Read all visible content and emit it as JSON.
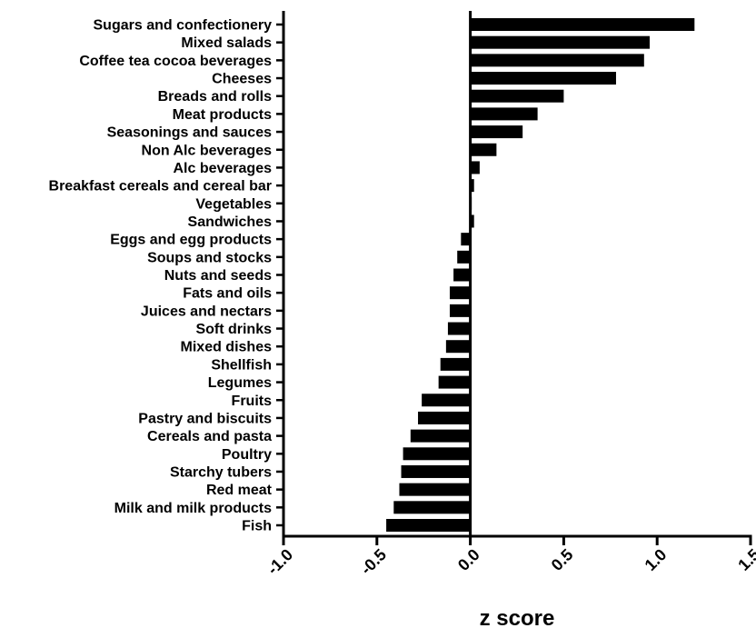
{
  "chart_data": {
    "type": "bar",
    "orientation": "horizontal",
    "categories": [
      "Sugars and confectionery",
      "Mixed salads",
      "Coffee tea cocoa beverages",
      "Cheeses",
      "Breads and rolls",
      "Meat products",
      "Seasonings and sauces",
      "Non Alc beverages",
      "Alc beverages",
      "Breakfast cereals and cereal bar",
      "Vegetables",
      "Sandwiches",
      "Eggs and egg products",
      "Soups and stocks",
      "Nuts and seeds",
      "Fats and oils",
      "Juices and nectars",
      "Soft drinks",
      "Mixed dishes",
      "Shellfish",
      "Legumes",
      "Fruits",
      "Pastry and biscuits",
      "Cereals and pasta",
      "Poultry",
      "Starchy tubers",
      "Red meat",
      "Milk and milk products",
      "Fish"
    ],
    "values": [
      1.2,
      0.96,
      0.93,
      0.78,
      0.5,
      0.36,
      0.28,
      0.14,
      0.05,
      0.02,
      0.0,
      0.02,
      -0.05,
      -0.07,
      -0.09,
      -0.11,
      -0.11,
      -0.12,
      -0.13,
      -0.16,
      -0.17,
      -0.26,
      -0.28,
      -0.32,
      -0.36,
      -0.37,
      -0.38,
      -0.41,
      -0.45
    ],
    "title": "",
    "xlabel": "z score",
    "ylabel": "",
    "xlim": [
      -1.0,
      1.5
    ],
    "xticks": [
      "-1.0",
      "-0.5",
      "0.0",
      "0.5",
      "1.0",
      "1.5"
    ],
    "bar_color": "#000000",
    "grid": false,
    "legend": "none"
  }
}
